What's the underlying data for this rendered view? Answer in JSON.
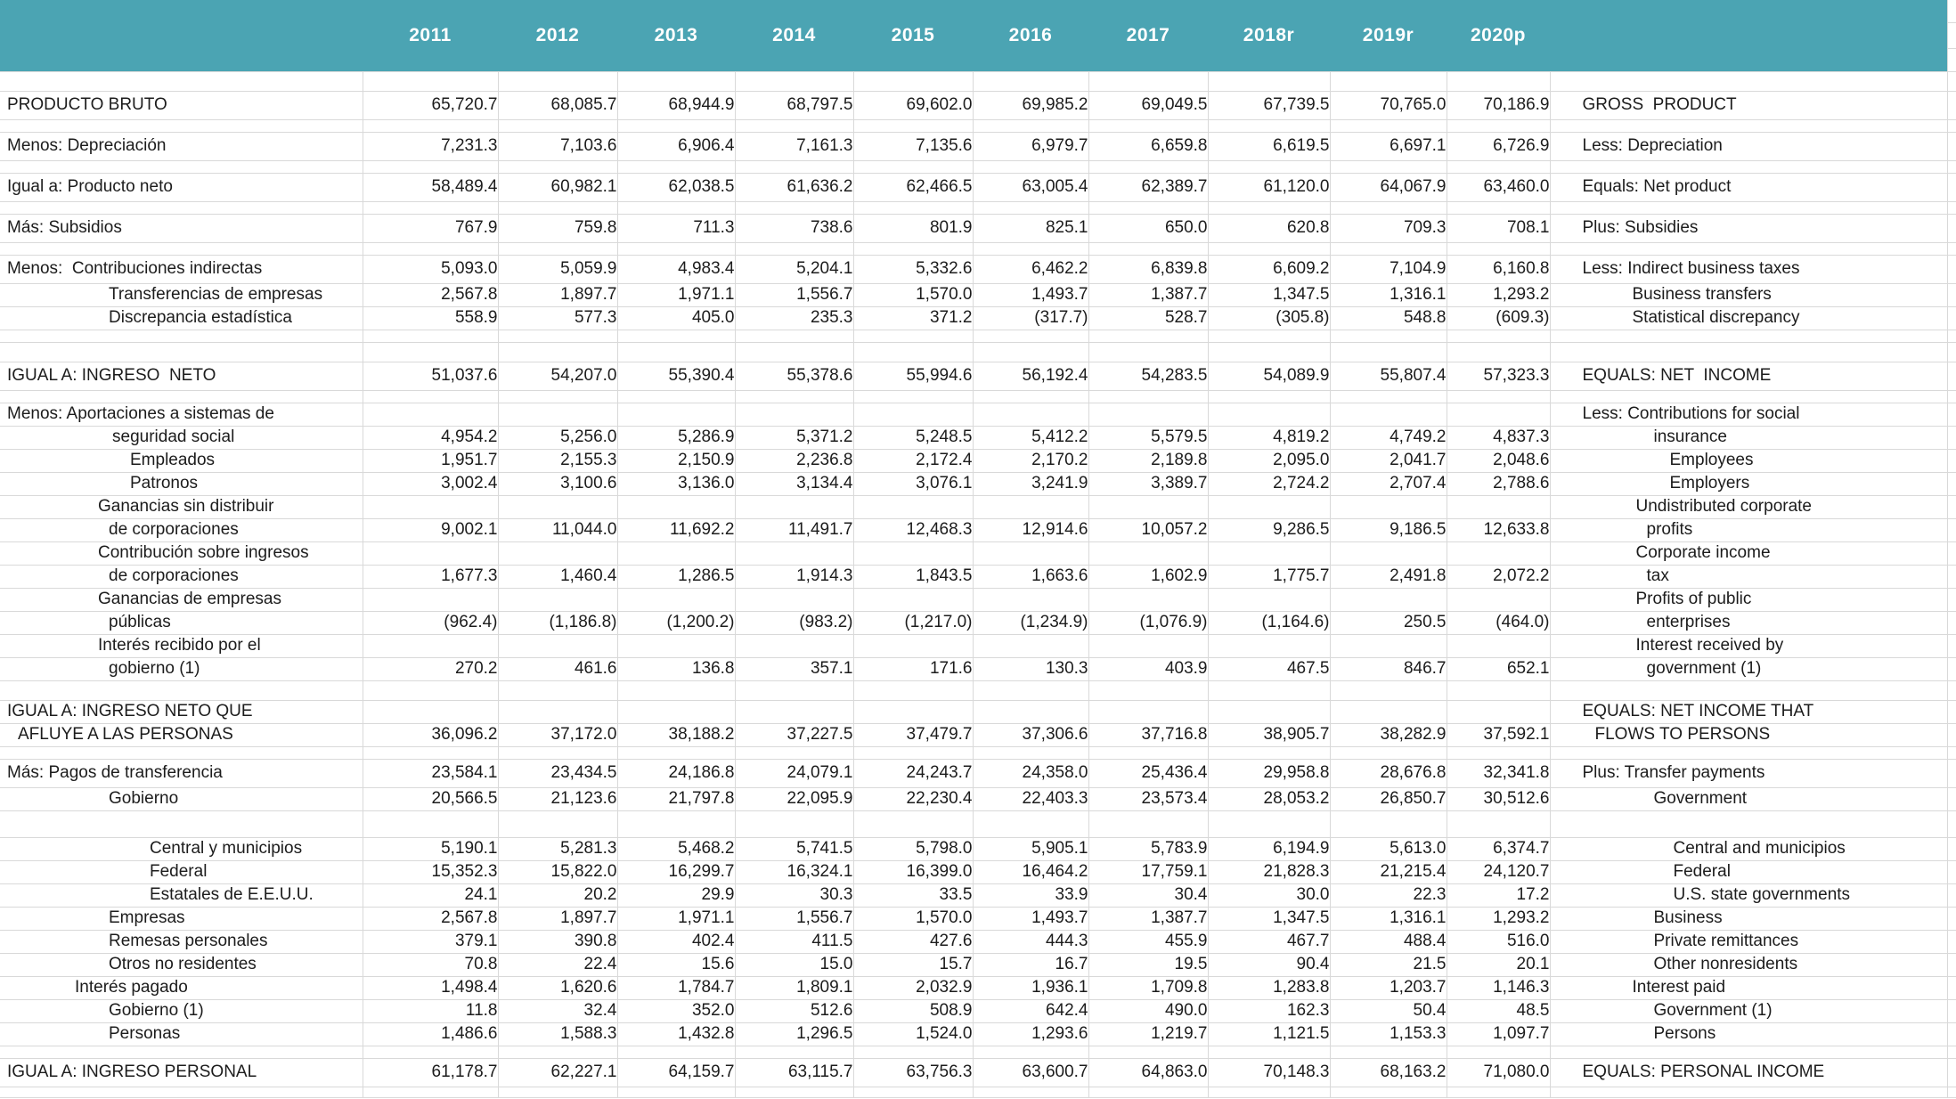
{
  "colors": {
    "header_bg": "#4BA4B3",
    "header_text": "#ffffff",
    "grid_line": "#d9d9d9",
    "text": "#1c1c1c",
    "row_bg": "#ffffff"
  },
  "table": {
    "years": [
      "2011",
      "2012",
      "2013",
      "2014",
      "2015",
      "2016",
      "2017",
      "2018r",
      "2019r",
      "2020p"
    ],
    "rows": [
      {
        "h": "first"
      },
      {
        "h": "n",
        "es": "PRODUCTO BRUTO",
        "ind_es": 8,
        "en": "GROSS  PRODUCT",
        "ind_en": 36,
        "values": [
          "65,720.7",
          "68,085.7",
          "68,944.9",
          "68,797.5",
          "69,602.0",
          "69,985.2",
          "69,049.5",
          "67,739.5",
          "70,765.0",
          "70,186.9"
        ]
      },
      {
        "h": "s"
      },
      {
        "h": "n",
        "es": "Menos: Depreciación",
        "ind_es": 8,
        "en": "Less: Depreciation",
        "ind_en": 36,
        "values": [
          "7,231.3",
          "7,103.6",
          "6,906.4",
          "7,161.3",
          "7,135.6",
          "6,979.7",
          "6,659.8",
          "6,619.5",
          "6,697.1",
          "6,726.9"
        ]
      },
      {
        "h": "s"
      },
      {
        "h": "n",
        "es": "Igual a: Producto neto",
        "ind_es": 8,
        "en": "Equals: Net product",
        "ind_en": 36,
        "values": [
          "58,489.4",
          "60,982.1",
          "62,038.5",
          "61,636.2",
          "62,466.5",
          "63,005.4",
          "62,389.7",
          "61,120.0",
          "64,067.9",
          "63,460.0"
        ]
      },
      {
        "h": "s"
      },
      {
        "h": "n",
        "es": "Más: Subsidios",
        "ind_es": 8,
        "en": "Plus: Subsidies",
        "ind_en": 36,
        "values": [
          "767.9",
          "759.8",
          "711.3",
          "738.6",
          "801.9",
          "825.1",
          "650.0",
          "620.8",
          "709.3",
          "708.1"
        ]
      },
      {
        "h": "s"
      },
      {
        "h": "n",
        "es": "Menos:  Contribuciones indirectas",
        "ind_es": 8,
        "en": "Less: Indirect business taxes",
        "ind_en": 36,
        "values": [
          "5,093.0",
          "5,059.9",
          "4,983.4",
          "5,204.1",
          "5,332.6",
          "6,462.2",
          "6,839.8",
          "6,609.2",
          "7,104.9",
          "6,160.8"
        ]
      },
      {
        "h": "d",
        "es": "Transferencias de empresas",
        "ind_es": 122,
        "en": "Business transfers",
        "ind_en": 92,
        "values": [
          "2,567.8",
          "1,897.7",
          "1,971.1",
          "1,556.7",
          "1,570.0",
          "1,493.7",
          "1,387.7",
          "1,347.5",
          "1,316.1",
          "1,293.2"
        ]
      },
      {
        "h": "d",
        "es": "Discrepancia estadística",
        "ind_es": 122,
        "en": "Statistical discrepancy",
        "ind_en": 92,
        "values": [
          "558.9",
          "577.3",
          "405.0",
          "235.3",
          "371.2",
          "(317.7)",
          "528.7",
          "(305.8)",
          "548.8",
          "(609.3)"
        ]
      },
      {
        "h": "s"
      },
      {
        "h": "sl"
      },
      {
        "h": "n",
        "es": "IGUAL A: INGRESO  NETO",
        "ind_es": 8,
        "en": "EQUALS: NET  INCOME",
        "ind_en": 36,
        "values": [
          "51,037.6",
          "54,207.0",
          "55,390.4",
          "55,378.6",
          "55,994.6",
          "56,192.4",
          "54,283.5",
          "54,089.9",
          "55,807.4",
          "57,323.3"
        ]
      },
      {
        "h": "s"
      },
      {
        "h": "d",
        "es": "Menos: Aportaciones a sistemas de",
        "ind_es": 8,
        "en": "Less: Contributions for social",
        "ind_en": 36,
        "values": [
          "",
          "",
          "",
          "",
          "",
          "",
          "",
          "",
          "",
          ""
        ]
      },
      {
        "h": "d",
        "es": "seguridad social",
        "ind_es": 126,
        "en": "insurance",
        "ind_en": 116,
        "values": [
          "4,954.2",
          "5,256.0",
          "5,286.9",
          "5,371.2",
          "5,248.5",
          "5,412.2",
          "5,579.5",
          "4,819.2",
          "4,749.2",
          "4,837.3"
        ]
      },
      {
        "h": "d",
        "es": "Empleados",
        "ind_es": 146,
        "en": "Employees",
        "ind_en": 134,
        "values": [
          "1,951.7",
          "2,155.3",
          "2,150.9",
          "2,236.8",
          "2,172.4",
          "2,170.2",
          "2,189.8",
          "2,095.0",
          "2,041.7",
          "2,048.6"
        ]
      },
      {
        "h": "d",
        "es": "Patronos",
        "ind_es": 146,
        "en": "Employers",
        "ind_en": 134,
        "values": [
          "3,002.4",
          "3,100.6",
          "3,136.0",
          "3,134.4",
          "3,076.1",
          "3,241.9",
          "3,389.7",
          "2,724.2",
          "2,707.4",
          "2,788.6"
        ]
      },
      {
        "h": "d",
        "es": "Ganancias sin distribuir",
        "ind_es": 110,
        "en": "Undistributed corporate",
        "ind_en": 96,
        "values": [
          "",
          "",
          "",
          "",
          "",
          "",
          "",
          "",
          "",
          ""
        ]
      },
      {
        "h": "d",
        "es": "de corporaciones",
        "ind_es": 122,
        "en": "profits",
        "ind_en": 108,
        "values": [
          "9,002.1",
          "11,044.0",
          "11,692.2",
          "11,491.7",
          "12,468.3",
          "12,914.6",
          "10,057.2",
          "9,286.5",
          "9,186.5",
          "12,633.8"
        ]
      },
      {
        "h": "d",
        "es": "Contribución sobre ingresos",
        "ind_es": 110,
        "en": "Corporate income",
        "ind_en": 96,
        "values": [
          "",
          "",
          "",
          "",
          "",
          "",
          "",
          "",
          "",
          ""
        ]
      },
      {
        "h": "d",
        "es": "de corporaciones",
        "ind_es": 122,
        "en": "tax",
        "ind_en": 108,
        "values": [
          "1,677.3",
          "1,460.4",
          "1,286.5",
          "1,914.3",
          "1,843.5",
          "1,663.6",
          "1,602.9",
          "1,775.7",
          "2,491.8",
          "2,072.2"
        ]
      },
      {
        "h": "d",
        "es": "Ganancias de empresas",
        "ind_es": 110,
        "en": "Profits of public",
        "ind_en": 96,
        "values": [
          "",
          "",
          "",
          "",
          "",
          "",
          "",
          "",
          "",
          ""
        ]
      },
      {
        "h": "d",
        "es": "públicas",
        "ind_es": 122,
        "en": "enterprises",
        "ind_en": 108,
        "values": [
          "(962.4)",
          "(1,186.8)",
          "(1,200.2)",
          "(983.2)",
          "(1,217.0)",
          "(1,234.9)",
          "(1,076.9)",
          "(1,164.6)",
          "250.5",
          "(464.0)"
        ]
      },
      {
        "h": "d",
        "es": "Interés recibido por el",
        "ind_es": 110,
        "en": "Interest received by",
        "ind_en": 96,
        "values": [
          "",
          "",
          "",
          "",
          "",
          "",
          "",
          "",
          "",
          ""
        ]
      },
      {
        "h": "d",
        "es": "gobierno (1)",
        "ind_es": 122,
        "en": "government (1)",
        "ind_en": 108,
        "values": [
          "270.2",
          "461.6",
          "136.8",
          "357.1",
          "171.6",
          "130.3",
          "403.9",
          "467.5",
          "846.7",
          "652.1"
        ]
      },
      {
        "h": "sl"
      },
      {
        "h": "d",
        "es": "IGUAL A: INGRESO NETO QUE",
        "ind_es": 8,
        "en": "EQUALS: NET INCOME THAT",
        "ind_en": 36,
        "values": [
          "",
          "",
          "",
          "",
          "",
          "",
          "",
          "",
          "",
          ""
        ]
      },
      {
        "h": "d",
        "es": "AFLUYE A LAS PERSONAS",
        "ind_es": 20,
        "en": "FLOWS TO PERSONS",
        "ind_en": 50,
        "values": [
          "36,096.2",
          "37,172.0",
          "38,188.2",
          "37,227.5",
          "37,479.7",
          "37,306.6",
          "37,716.8",
          "38,905.7",
          "38,282.9",
          "37,592.1"
        ]
      },
      {
        "h": "s"
      },
      {
        "h": "n",
        "es": "Más: Pagos de transferencia",
        "ind_es": 8,
        "en": "Plus: Transfer payments",
        "ind_en": 36,
        "values": [
          "23,584.1",
          "23,434.5",
          "24,186.8",
          "24,079.1",
          "24,243.7",
          "24,358.0",
          "25,436.4",
          "29,958.8",
          "28,676.8",
          "32,341.8"
        ]
      },
      {
        "h": "d",
        "es": "Gobierno",
        "ind_es": 122,
        "en": "Government",
        "ind_en": 116,
        "values": [
          "20,566.5",
          "21,123.6",
          "21,797.8",
          "22,095.9",
          "22,230.4",
          "22,403.3",
          "23,573.4",
          "28,053.2",
          "26,850.7",
          "30,512.6"
        ]
      },
      {
        "h": "xl"
      },
      {
        "h": "d",
        "es": "Central y municipios",
        "ind_es": 168,
        "en": "Central and municipios",
        "ind_en": 138,
        "values": [
          "5,190.1",
          "5,281.3",
          "5,468.2",
          "5,741.5",
          "5,798.0",
          "5,905.1",
          "5,783.9",
          "6,194.9",
          "5,613.0",
          "6,374.7"
        ]
      },
      {
        "h": "d",
        "es": "Federal",
        "ind_es": 168,
        "en": "Federal",
        "ind_en": 138,
        "values": [
          "15,352.3",
          "15,822.0",
          "16,299.7",
          "16,324.1",
          "16,399.0",
          "16,464.2",
          "17,759.1",
          "21,828.3",
          "21,215.4",
          "24,120.7"
        ]
      },
      {
        "h": "d",
        "es": "Estatales de E.E.U.U.",
        "ind_es": 168,
        "en": "U.S. state governments",
        "ind_en": 138,
        "values": [
          "24.1",
          "20.2",
          "29.9",
          "30.3",
          "33.5",
          "33.9",
          "30.4",
          "30.0",
          "22.3",
          "17.2"
        ]
      },
      {
        "h": "d",
        "es": "Empresas",
        "ind_es": 122,
        "en": "Business",
        "ind_en": 116,
        "values": [
          "2,567.8",
          "1,897.7",
          "1,971.1",
          "1,556.7",
          "1,570.0",
          "1,493.7",
          "1,387.7",
          "1,347.5",
          "1,316.1",
          "1,293.2"
        ]
      },
      {
        "h": "d",
        "es": "Remesas personales",
        "ind_es": 122,
        "en": "Private remittances",
        "ind_en": 116,
        "values": [
          "379.1",
          "390.8",
          "402.4",
          "411.5",
          "427.6",
          "444.3",
          "455.9",
          "467.7",
          "488.4",
          "516.0"
        ]
      },
      {
        "h": "d",
        "es": "Otros no residentes",
        "ind_es": 122,
        "en": "Other nonresidents",
        "ind_en": 116,
        "values": [
          "70.8",
          "22.4",
          "15.6",
          "15.0",
          "15.7",
          "16.7",
          "19.5",
          "90.4",
          "21.5",
          "20.1"
        ]
      },
      {
        "h": "d",
        "es": "Interés pagado",
        "ind_es": 84,
        "en": "Interest paid",
        "ind_en": 92,
        "values": [
          "1,498.4",
          "1,620.6",
          "1,784.7",
          "1,809.1",
          "2,032.9",
          "1,936.1",
          "1,709.8",
          "1,283.8",
          "1,203.7",
          "1,146.3"
        ]
      },
      {
        "h": "d",
        "es": "Gobierno (1)",
        "ind_es": 122,
        "en": "Government (1)",
        "ind_en": 116,
        "values": [
          "11.8",
          "32.4",
          "352.0",
          "512.6",
          "508.9",
          "642.4",
          "490.0",
          "162.3",
          "50.4",
          "48.5"
        ]
      },
      {
        "h": "d",
        "es": "Personas",
        "ind_es": 122,
        "en": "Persons",
        "ind_en": 116,
        "values": [
          "1,486.6",
          "1,588.3",
          "1,432.8",
          "1,296.5",
          "1,524.0",
          "1,293.6",
          "1,219.7",
          "1,121.5",
          "1,153.3",
          "1,097.7"
        ]
      },
      {
        "h": "s"
      },
      {
        "h": "n",
        "es": "IGUAL A: INGRESO PERSONAL",
        "ind_es": 8,
        "en": "EQUALS: PERSONAL INCOME",
        "ind_en": 36,
        "values": [
          "61,178.7",
          "62,227.1",
          "64,159.7",
          "63,115.7",
          "63,756.3",
          "63,600.7",
          "64,863.0",
          "70,148.3",
          "68,163.2",
          "71,080.0"
        ]
      },
      {
        "h": "end"
      }
    ]
  }
}
